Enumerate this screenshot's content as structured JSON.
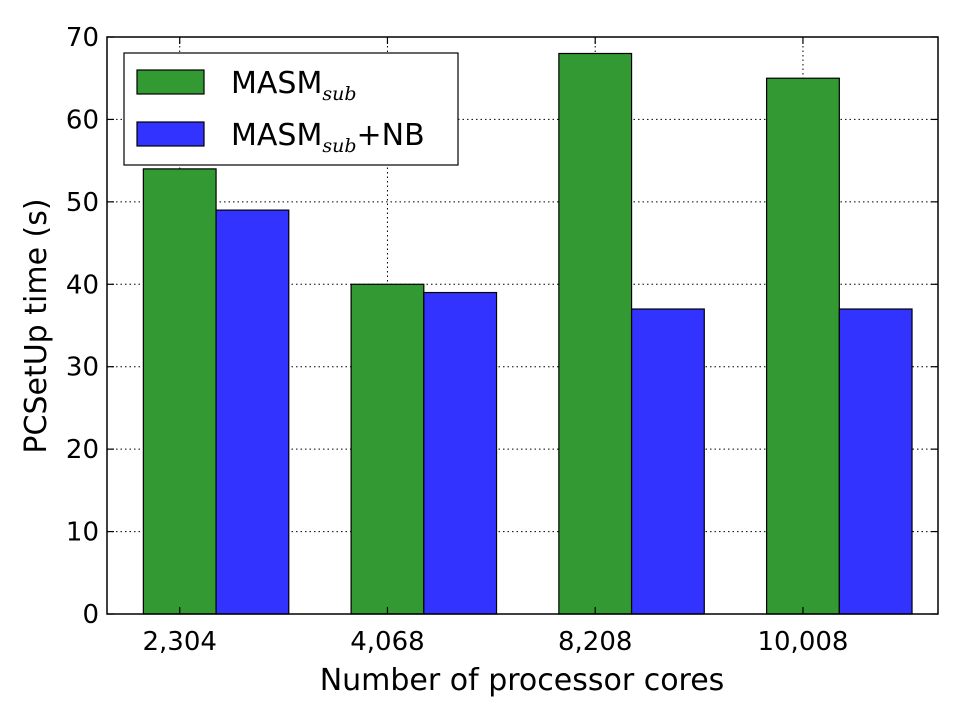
{
  "chart_data": {
    "type": "bar",
    "title": "",
    "xlabel": "Number of processor cores",
    "ylabel": "PCSetUp time (s)",
    "categories": [
      "2,304",
      "4,068",
      "8,208",
      "10,008"
    ],
    "ylim": [
      0,
      70
    ],
    "yticks": [
      0,
      10,
      20,
      30,
      40,
      50,
      60,
      70
    ],
    "grid": true,
    "legend_position": "top-left",
    "series": [
      {
        "name": "MASM",
        "name_subscript": "sub",
        "name_suffix": "",
        "color": "#339933",
        "values": [
          54,
          40,
          68,
          65
        ]
      },
      {
        "name": "MASM",
        "name_subscript": "sub",
        "name_suffix": "+NB",
        "color": "#3333ff",
        "values": [
          49,
          39,
          37,
          37
        ]
      }
    ]
  }
}
